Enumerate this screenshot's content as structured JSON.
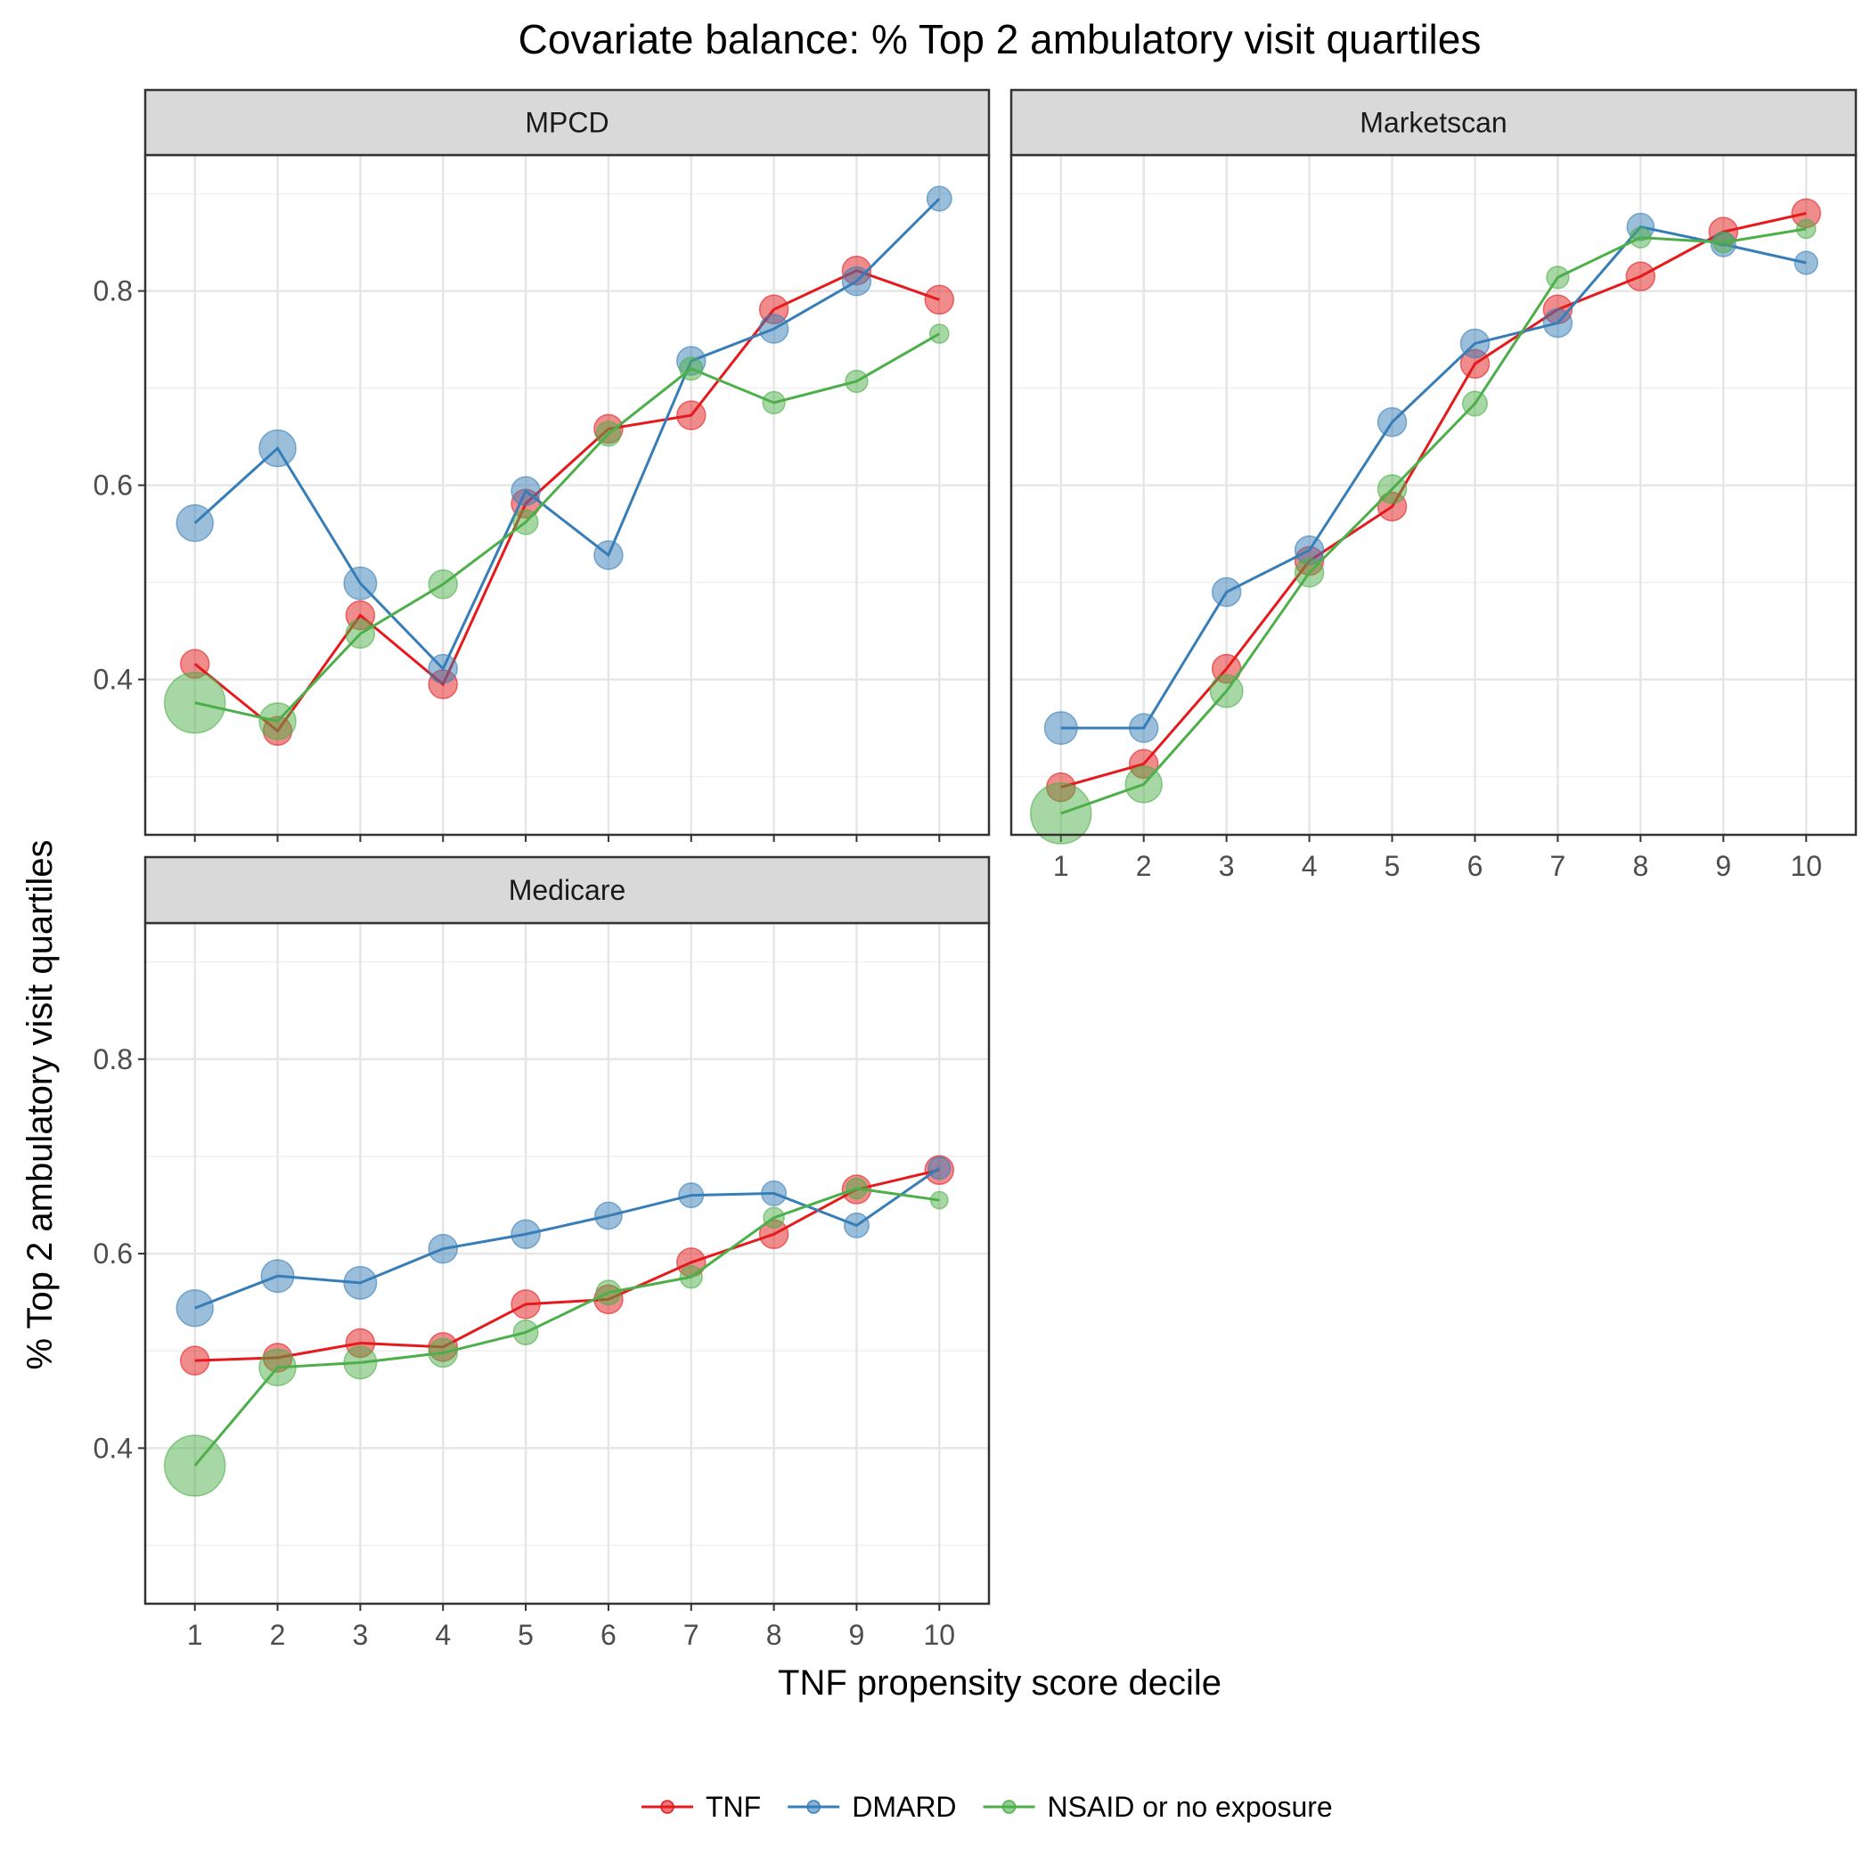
{
  "chart_data": {
    "type": "line",
    "title": "Covariate balance: % Top 2 ambulatory visit quartiles",
    "xlabel": "TNF propensity score decile",
    "ylabel": "% Top 2 ambulatory visit quartiles",
    "x": [
      1,
      2,
      3,
      4,
      5,
      6,
      7,
      8,
      9,
      10
    ],
    "x_ticks": [
      "1",
      "2",
      "3",
      "4",
      "5",
      "6",
      "7",
      "8",
      "9",
      "10"
    ],
    "y_ticks": [
      "0.4",
      "0.6",
      "0.8"
    ],
    "ylim": [
      0.24,
      0.94
    ],
    "grid": true,
    "legend_position": "bottom",
    "legend": [
      {
        "name": "TNF",
        "color": "#e41a1c"
      },
      {
        "name": "DMARD",
        "color": "#377eb8"
      },
      {
        "name": "NSAID or no exposure",
        "color": "#4daf4a"
      }
    ],
    "panels": [
      {
        "name": "MPCD",
        "series": [
          {
            "name": "TNF",
            "values": [
              0.416,
              0.347,
              0.466,
              0.395,
              0.581,
              0.658,
              0.672,
              0.781,
              0.821,
              0.791
            ],
            "sizes": [
              2,
              2,
              2,
              2,
              2,
              2,
              2,
              2,
              2,
              2
            ]
          },
          {
            "name": "DMARD",
            "values": [
              0.561,
              0.638,
              0.499,
              0.411,
              0.594,
              0.528,
              0.728,
              0.761,
              0.81,
              0.895
            ],
            "sizes": [
              3,
              3,
              2.5,
              2,
              2,
              2,
              2,
              2,
              2,
              1.5
            ]
          },
          {
            "name": "NSAID or no exposure",
            "values": [
              0.376,
              0.357,
              0.447,
              0.498,
              0.562,
              0.653,
              0.72,
              0.685,
              0.707,
              0.756
            ],
            "sizes": [
              6,
              3,
              2,
              2,
              1.5,
              1.5,
              1.3,
              1.2,
              1.2,
              0.8
            ]
          }
        ]
      },
      {
        "name": "Marketscan",
        "series": [
          {
            "name": "TNF",
            "values": [
              0.289,
              0.313,
              0.411,
              0.522,
              0.578,
              0.725,
              0.781,
              0.815,
              0.861,
              0.88
            ],
            "sizes": [
              2,
              2,
              2,
              2,
              2,
              2,
              2,
              2,
              2,
              2
            ]
          },
          {
            "name": "DMARD",
            "values": [
              0.35,
              0.35,
              0.49,
              0.533,
              0.665,
              0.746,
              0.767,
              0.866,
              0.848,
              0.829
            ],
            "sizes": [
              2.5,
              2,
              2,
              2,
              2,
              2,
              2,
              1.8,
              1.5,
              1.3
            ]
          },
          {
            "name": "NSAID or no exposure",
            "values": [
              0.262,
              0.292,
              0.388,
              0.51,
              0.596,
              0.684,
              0.814,
              0.855,
              0.85,
              0.864
            ],
            "sizes": [
              6,
              3,
              2.5,
              2,
              2,
              1.5,
              1.2,
              1,
              1,
              0.8
            ]
          }
        ]
      },
      {
        "name": "Medicare",
        "series": [
          {
            "name": "TNF",
            "values": [
              0.49,
              0.493,
              0.508,
              0.504,
              0.548,
              0.553,
              0.591,
              0.62,
              0.666,
              0.686
            ],
            "sizes": [
              2,
              2,
              2,
              2,
              2,
              2,
              2,
              2,
              2,
              2
            ]
          },
          {
            "name": "DMARD",
            "values": [
              0.544,
              0.577,
              0.57,
              0.605,
              0.62,
              0.639,
              0.66,
              0.662,
              0.629,
              0.688
            ],
            "sizes": [
              3,
              2.5,
              2.5,
              2,
              2,
              1.8,
              1.5,
              1.5,
              1.5,
              1.2
            ]
          },
          {
            "name": "NSAID or no exposure",
            "values": [
              0.382,
              0.483,
              0.488,
              0.498,
              0.519,
              0.56,
              0.576,
              0.637,
              0.667,
              0.655
            ],
            "sizes": [
              6,
              3,
              2.5,
              2,
              1.5,
              1.5,
              1.2,
              1,
              1,
              0.6
            ]
          }
        ]
      }
    ]
  }
}
